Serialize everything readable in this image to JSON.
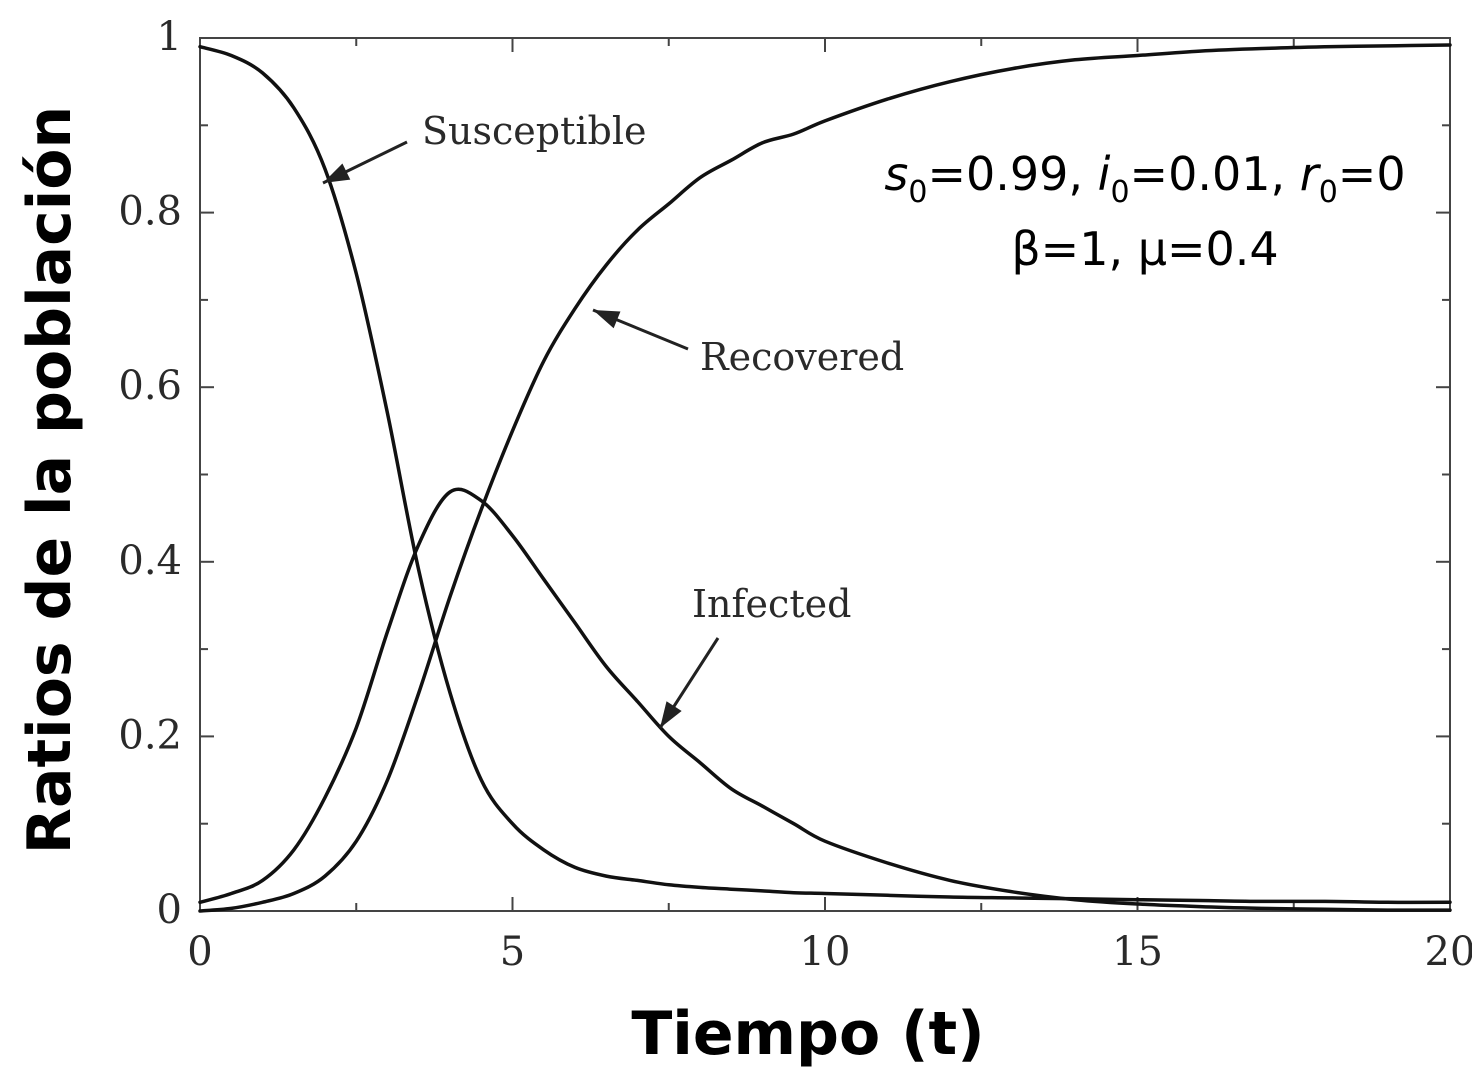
{
  "chart_data": {
    "type": "line",
    "xlabel": "Tiempo (t)",
    "ylabel": "Ratios de la población",
    "xlim": [
      0,
      20
    ],
    "ylim": [
      0,
      1
    ],
    "xticks": [
      "0",
      "5",
      "10",
      "15",
      "20"
    ],
    "yticks": [
      "0",
      "0.2",
      "0.4",
      "0.6",
      "0.8",
      "1"
    ],
    "grid": false,
    "x": [
      0,
      0.5,
      1,
      1.5,
      2,
      2.5,
      3,
      3.5,
      4,
      4.5,
      5,
      5.5,
      6,
      6.5,
      7,
      7.5,
      8,
      8.5,
      9,
      9.5,
      10,
      11,
      12,
      13,
      14,
      15,
      16,
      17,
      18,
      19,
      20
    ],
    "series": [
      {
        "name": "Susceptible",
        "values": [
          0.99,
          0.98,
          0.96,
          0.92,
          0.85,
          0.73,
          0.57,
          0.39,
          0.25,
          0.15,
          0.1,
          0.07,
          0.05,
          0.04,
          0.035,
          0.03,
          0.027,
          0.025,
          0.023,
          0.021,
          0.02,
          0.018,
          0.016,
          0.015,
          0.014,
          0.013,
          0.012,
          0.011,
          0.011,
          0.01,
          0.01
        ]
      },
      {
        "name": "Infected",
        "values": [
          0.01,
          0.02,
          0.035,
          0.07,
          0.13,
          0.21,
          0.32,
          0.42,
          0.48,
          0.47,
          0.43,
          0.38,
          0.33,
          0.28,
          0.24,
          0.2,
          0.17,
          0.14,
          0.12,
          0.1,
          0.08,
          0.055,
          0.035,
          0.022,
          0.013,
          0.008,
          0.005,
          0.003,
          0.002,
          0.001,
          0.001
        ]
      },
      {
        "name": "Recovered",
        "values": [
          0.0,
          0.003,
          0.01,
          0.02,
          0.04,
          0.08,
          0.15,
          0.25,
          0.36,
          0.46,
          0.55,
          0.63,
          0.69,
          0.74,
          0.78,
          0.81,
          0.84,
          0.86,
          0.88,
          0.89,
          0.905,
          0.93,
          0.95,
          0.965,
          0.975,
          0.98,
          0.985,
          0.988,
          0.99,
          0.991,
          0.992
        ]
      }
    ],
    "annotations": {
      "line1": {
        "s": "s",
        "s_sub": "0",
        "s_val": "=0.99, ",
        "i": "i",
        "i_sub": "0",
        "i_val": "=0.01, ",
        "r": "r",
        "r_sub": "0",
        "r_val": "=0"
      },
      "line2": "β=1, μ=0.4"
    }
  }
}
